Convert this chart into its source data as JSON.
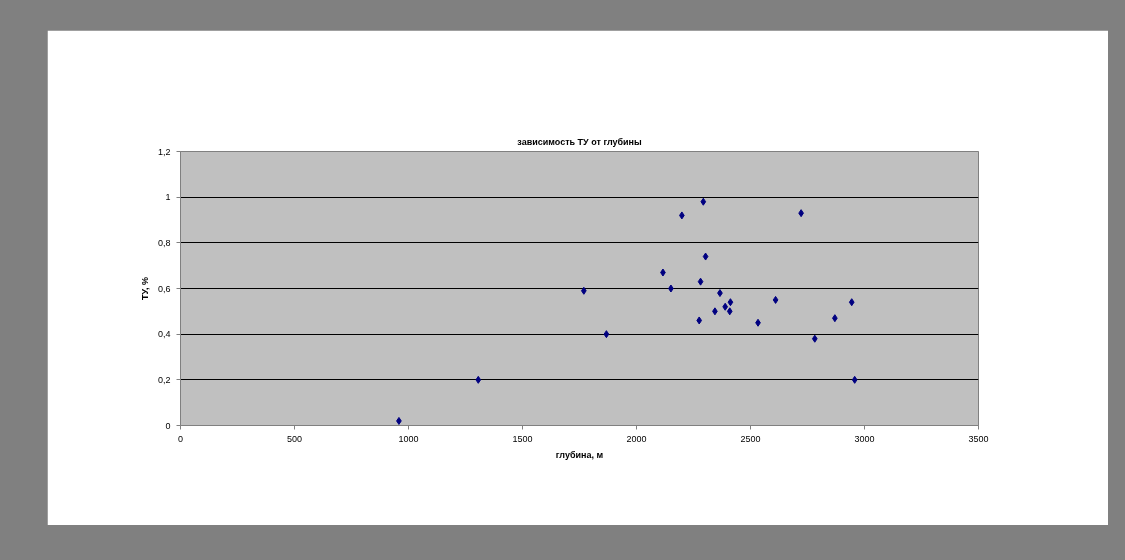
{
  "chart_data": {
    "type": "scatter",
    "title": "зависимость ТУ от глубины",
    "xlabel": "глубина, м",
    "ylabel": "ТУ, %",
    "x": [
      958,
      1306,
      1769,
      1868,
      2116,
      2151,
      2199,
      2275,
      2281,
      2293,
      2303,
      2344,
      2366,
      2389,
      2409,
      2412,
      2533,
      2610,
      2722,
      2782,
      2870,
      2944,
      2957
    ],
    "series": [
      {
        "color": "#000080",
        "values": [
          0.02,
          0.2,
          0.59,
          0.4,
          0.67,
          0.6,
          0.92,
          0.46,
          0.63,
          0.98,
          0.74,
          0.5,
          0.58,
          0.52,
          0.5,
          0.54,
          0.45,
          0.55,
          0.93,
          0.38,
          0.47,
          0.54,
          0.2
        ]
      }
    ],
    "xlim": [
      0,
      3500
    ],
    "xticks": [
      0,
      500,
      1000,
      1500,
      2000,
      2500,
      3000,
      3500
    ],
    "ylim": [
      0,
      1.2
    ],
    "yticks": [
      0,
      {
        "value": 0.2,
        "label": "0,2"
      },
      {
        "value": 0.4,
        "label": "0,4"
      },
      {
        "value": 0.6,
        "label": "0,6"
      },
      {
        "value": 0.8,
        "label": "0,8"
      },
      1,
      {
        "value": 1.2,
        "label": "1,2"
      }
    ],
    "grid": "y",
    "marker": "diamond"
  }
}
